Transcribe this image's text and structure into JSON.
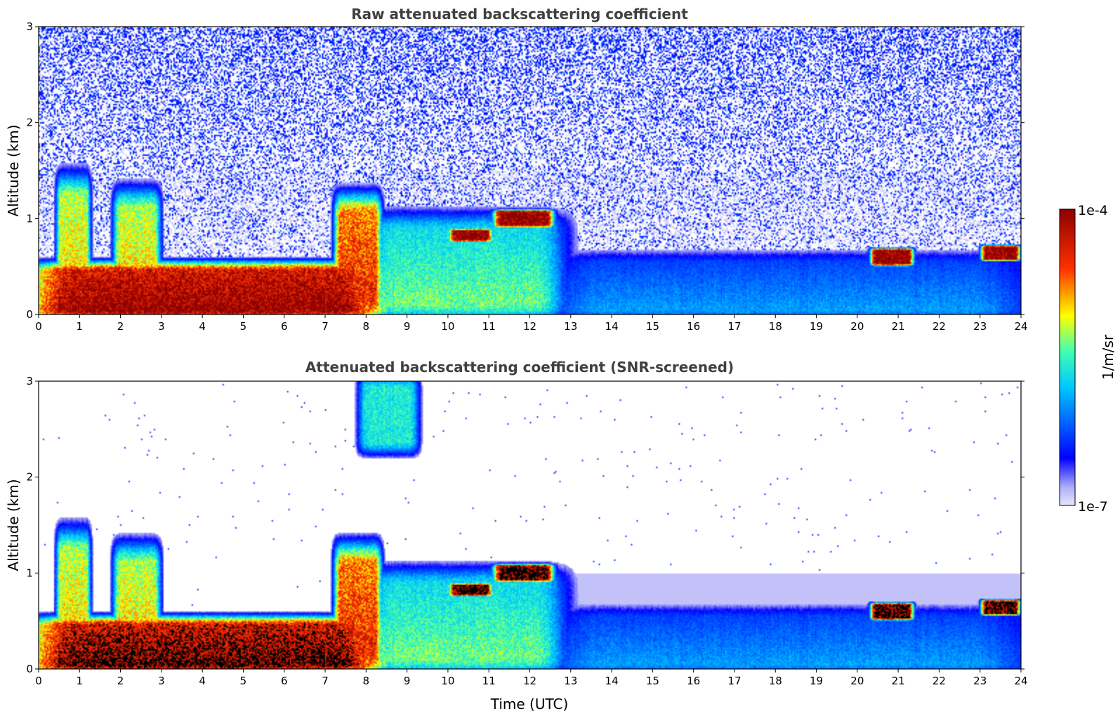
{
  "chart_data": [
    {
      "type": "heatmap",
      "title": "Raw attenuated backscattering coefficient",
      "xlabel": "",
      "ylabel": "Altitude (km)",
      "xlim": [
        0,
        24
      ],
      "ylim": [
        0,
        3
      ],
      "xticks": [
        "0",
        "1",
        "2",
        "3",
        "4",
        "5",
        "6",
        "7",
        "8",
        "9",
        "10",
        "11",
        "12",
        "13",
        "14",
        "15",
        "16",
        "17",
        "18",
        "19",
        "20",
        "21",
        "22",
        "23",
        "24"
      ],
      "yticks": [
        "0",
        "1",
        "2",
        "3"
      ],
      "screened": false,
      "features": [
        {
          "name": "boundary-layer aerosol",
          "x": [
            0,
            8.2
          ],
          "y": [
            0,
            0.5
          ],
          "level": 0.85
        },
        {
          "name": "aerosol plume",
          "x": [
            0.6,
            1.1
          ],
          "y": [
            0,
            1.4
          ],
          "level": 0.55
        },
        {
          "name": "aerosol plume",
          "x": [
            2.0,
            2.8
          ],
          "y": [
            0,
            1.25
          ],
          "level": 0.55
        },
        {
          "name": "aerosol plume",
          "x": [
            7.4,
            8.2
          ],
          "y": [
            0,
            1.2
          ],
          "level": 0.7
        },
        {
          "name": "mixed layer",
          "x": [
            8.2,
            12.6
          ],
          "y": [
            0,
            1.0
          ],
          "level": 0.4
        },
        {
          "name": "cloud",
          "x": [
            10.2,
            10.9
          ],
          "y": [
            0.8,
            0.85
          ],
          "level": 1.0
        },
        {
          "name": "cloud",
          "x": [
            11.3,
            12.4
          ],
          "y": [
            0.95,
            1.05
          ],
          "level": 1.0
        },
        {
          "name": "residual layer",
          "x": [
            12.6,
            24
          ],
          "y": [
            0,
            0.6
          ],
          "level": 0.2
        },
        {
          "name": "cloud",
          "x": [
            20.5,
            21.2
          ],
          "y": [
            0.55,
            0.65
          ],
          "level": 1.0
        },
        {
          "name": "cloud",
          "x": [
            23.2,
            23.8
          ],
          "y": [
            0.6,
            0.68
          ],
          "level": 1.0
        }
      ]
    },
    {
      "type": "heatmap",
      "title": "Attenuated backscattering coefficient (SNR-screened)",
      "xlabel": "Time (UTC)",
      "ylabel": "Altitude (km)",
      "xlim": [
        0,
        24
      ],
      "ylim": [
        0,
        3
      ],
      "xticks": [
        "0",
        "1",
        "2",
        "3",
        "4",
        "5",
        "6",
        "7",
        "8",
        "9",
        "10",
        "11",
        "12",
        "13",
        "14",
        "15",
        "16",
        "17",
        "18",
        "19",
        "20",
        "21",
        "22",
        "23",
        "24"
      ],
      "yticks": [
        "0",
        "1",
        "2",
        "3"
      ],
      "screened": true,
      "features": [
        {
          "name": "boundary-layer aerosol",
          "x": [
            0,
            8.2
          ],
          "y": [
            0,
            0.5
          ],
          "level": 0.85
        },
        {
          "name": "aerosol plume",
          "x": [
            0.6,
            1.1
          ],
          "y": [
            0,
            1.4
          ],
          "level": 0.55
        },
        {
          "name": "aerosol plume",
          "x": [
            2.0,
            2.8
          ],
          "y": [
            0,
            1.25
          ],
          "level": 0.55
        },
        {
          "name": "aerosol plume",
          "x": [
            7.4,
            8.2
          ],
          "y": [
            0,
            1.25
          ],
          "level": 0.7
        },
        {
          "name": "elevated layer",
          "x": [
            8.0,
            9.1
          ],
          "y": [
            2.3,
            3.0
          ],
          "level": 0.45
        },
        {
          "name": "mixed layer",
          "x": [
            8.2,
            12.6
          ],
          "y": [
            0,
            1.0
          ],
          "level": 0.4
        },
        {
          "name": "cloud",
          "x": [
            10.2,
            10.9
          ],
          "y": [
            0.8,
            0.85
          ],
          "level": 1.0
        },
        {
          "name": "cloud",
          "x": [
            11.3,
            12.4
          ],
          "y": [
            0.95,
            1.05
          ],
          "level": 1.0
        },
        {
          "name": "residual layer",
          "x": [
            12.6,
            24
          ],
          "y": [
            0,
            0.6
          ],
          "level": 0.2
        },
        {
          "name": "cloud",
          "x": [
            20.5,
            21.2
          ],
          "y": [
            0.55,
            0.65
          ],
          "level": 1.0
        },
        {
          "name": "cloud",
          "x": [
            23.2,
            23.8
          ],
          "y": [
            0.6,
            0.68
          ],
          "level": 1.0
        }
      ]
    }
  ],
  "colorbar": {
    "label": "1/m/sr",
    "max_label": "1e-4",
    "min_label": "1e-7",
    "colors": [
      "#e6e6fa",
      "#0000ff",
      "#00c8ff",
      "#ffff00",
      "#ff0000",
      "#8b0000"
    ]
  }
}
